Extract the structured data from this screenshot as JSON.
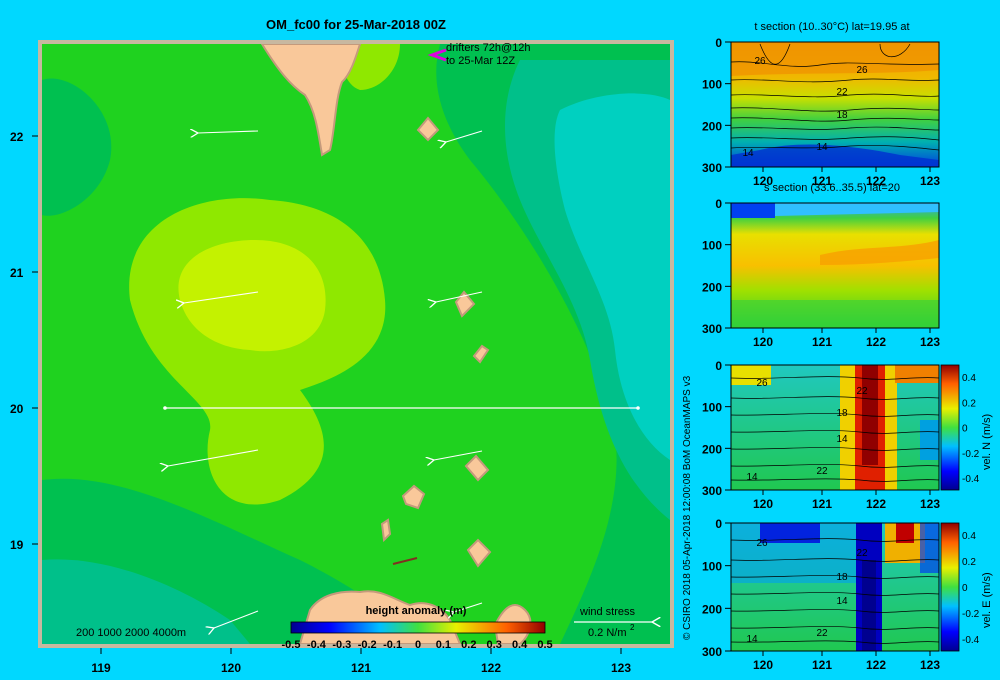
{
  "map": {
    "title": "OM_fc00 for 25-Mar-2018 00Z",
    "lon_ticks": [
      "119",
      "120",
      "121",
      "122",
      "123"
    ],
    "lat_ticks": [
      "22",
      "21",
      "20",
      "19"
    ],
    "drifters_line1": "drifters 72h@12h",
    "drifters_line2": "to 25-Mar 12Z",
    "depth_legend": "200  1000  2000  4000m",
    "colorbar_title": "height anomaly (m)",
    "colorbar_ticks": [
      "-0.5",
      "-0.4",
      "-0.3",
      "-0.2",
      "-0.1",
      "0",
      "0.1",
      "0.2",
      "0.3",
      "0.4",
      "0.5"
    ],
    "wind_title": "wind stress",
    "wind_value": "0.2 N/m",
    "wind_exp": "2",
    "credit": "© CSIRO 2018   05-Apr-2018 12:00:08 BoM OceanMAPS v3",
    "colors": {
      "land": "#f9c89a",
      "land_outline": "#c49a7c",
      "high": "#c4f200",
      "mid": "#8fe800",
      "base": "#1fd21f",
      "low": "#00c050",
      "lower": "#00c08a",
      "lowest": "#00d0c0"
    }
  },
  "panels": [
    {
      "title": "t section (10..30°C) lat=19.95 at",
      "y_ticks": [
        "0",
        "100",
        "200",
        "300"
      ],
      "x_ticks": [
        "120",
        "121",
        "122",
        "123"
      ],
      "contour_labels": [
        "26",
        "26",
        "22",
        "18",
        "14",
        "14"
      ]
    },
    {
      "title": "s section (33.6..35.5) lat=20",
      "y_ticks": [
        "0",
        "100",
        "200",
        "300"
      ],
      "x_ticks": [
        "120",
        "121",
        "122",
        "123"
      ]
    },
    {
      "title": "",
      "y_ticks": [
        "0",
        "100",
        "200",
        "300"
      ],
      "x_ticks": [
        "120",
        "121",
        "122",
        "123"
      ],
      "contour_labels": [
        "26",
        "22",
        "18",
        "14",
        "14",
        "22"
      ],
      "cbar_ticks": [
        "0.4",
        "0.2",
        "0",
        "-0.2",
        "-0.4"
      ],
      "cbar_label": "vel. N (m/s)"
    },
    {
      "title": "",
      "y_ticks": [
        "0",
        "100",
        "200",
        "300"
      ],
      "x_ticks": [
        "120",
        "121",
        "122",
        "123"
      ],
      "contour_labels": [
        "26",
        "22",
        "18",
        "14",
        "14",
        "22"
      ],
      "cbar_ticks": [
        "0.4",
        "0.2",
        "0",
        "-0.2",
        "-0.4"
      ],
      "cbar_label": "vel. E (m/s)"
    }
  ]
}
